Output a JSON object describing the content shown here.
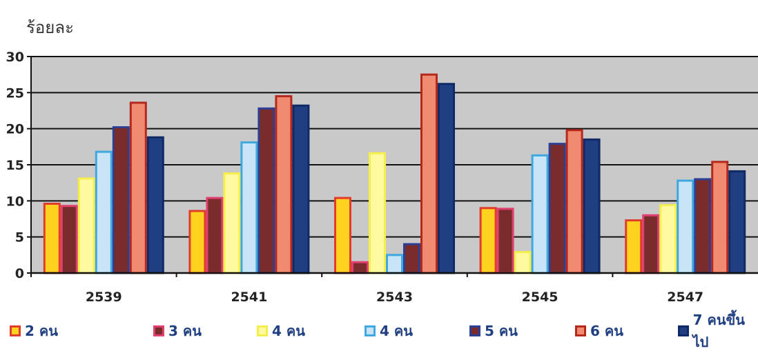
{
  "chart_data": {
    "type": "bar",
    "ylabel": "ร้อยละ",
    "ylim": [
      0,
      30
    ],
    "yticks": [
      0,
      5,
      10,
      15,
      20,
      25,
      30
    ],
    "grid": true,
    "legend_position": "bottom",
    "categories": [
      "2539",
      "2541",
      "2543",
      "2545",
      "2547"
    ],
    "series": [
      {
        "name": "2 คน",
        "fill": "#ffd21f",
        "edge": "#e23b2c",
        "values": [
          9.6,
          8.6,
          10.4,
          9.0,
          7.3
        ]
      },
      {
        "name": "3 คน",
        "fill": "#7a2c2c",
        "edge": "#e04070",
        "values": [
          9.3,
          10.4,
          1.5,
          8.9,
          8.0
        ]
      },
      {
        "name": "4 คน",
        "fill": "#fffaa0",
        "edge": "#f6ee4a",
        "values": [
          13.1,
          13.8,
          16.6,
          2.9,
          9.4
        ]
      },
      {
        "name": "4 คน",
        "fill": "#c8e4f6",
        "edge": "#3ea8df",
        "values": [
          16.8,
          18.1,
          2.5,
          16.3,
          12.8
        ]
      },
      {
        "name": "5 คน",
        "fill": "#7a2c2c",
        "edge": "#2d3f93",
        "values": [
          20.2,
          22.8,
          4.0,
          17.9,
          13.0
        ]
      },
      {
        "name": "6 คน",
        "fill": "#f08a70",
        "edge": "#b5291d",
        "values": [
          23.6,
          24.5,
          27.5,
          19.8,
          15.4
        ]
      },
      {
        "name": "7 คนขึ้นไป",
        "fill": "#1f3f82",
        "edge": "#0f2a66",
        "values": [
          18.8,
          23.2,
          26.2,
          18.5,
          14.1
        ]
      }
    ]
  }
}
